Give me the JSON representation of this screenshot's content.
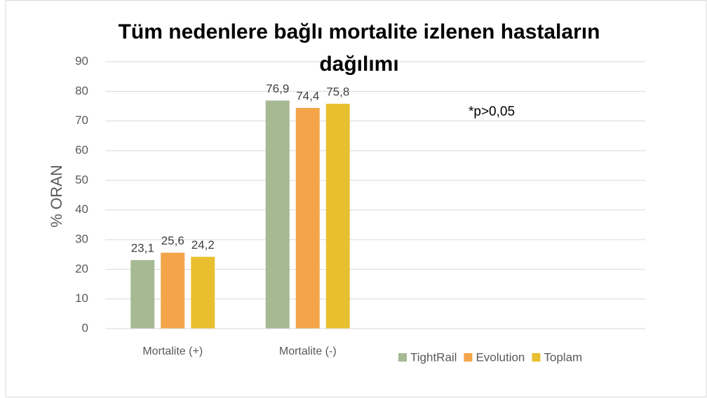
{
  "chart_data": {
    "type": "bar",
    "title": [
      "Tüm nedenlere bağlı mortalite izlenen hastaların",
      "dağılımı"
    ],
    "y_label": "% ORAN",
    "annotation": "*p>0,05",
    "categories": [
      "Mortalite (+)",
      "Mortalite (-)",
      null,
      null
    ],
    "series": [
      {
        "name": "TightRail",
        "color": "#a6b993",
        "values": [
          23.1,
          76.9,
          null,
          null
        ],
        "value_labels": [
          "23,1",
          "76,9",
          null,
          null
        ]
      },
      {
        "name": "Evolution",
        "color": "#f4a54a",
        "values": [
          25.6,
          74.4,
          null,
          null
        ],
        "value_labels": [
          "25,6",
          "74,4",
          null,
          null
        ]
      },
      {
        "name": "Toplam",
        "color": "#e8c02f",
        "values": [
          24.2,
          75.8,
          null,
          null
        ],
        "value_labels": [
          "24,2",
          "75,8",
          null,
          null
        ]
      }
    ],
    "ylim": [
      0,
      90
    ],
    "yticks": [
      0,
      10,
      20,
      30,
      40,
      50,
      60,
      70,
      80,
      90
    ],
    "grid": true,
    "legend": "bottom-right"
  }
}
